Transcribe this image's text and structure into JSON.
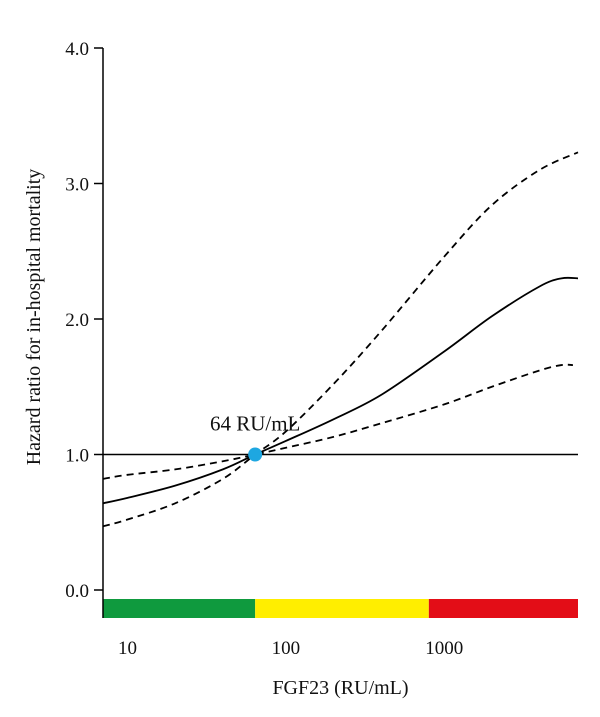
{
  "chart_data": {
    "type": "line",
    "xlabel": "FGF23 (RU/mL)",
    "ylabel": "Hazard ratio for in-hospital mortality",
    "x_scale": "log",
    "xlim": [
      7,
      7000
    ],
    "ylim": [
      0.0,
      4.0
    ],
    "x_ticks": [
      10,
      100,
      1000
    ],
    "x_tick_labels": [
      "10",
      "100",
      "1000"
    ],
    "y_ticks": [
      0.0,
      1.0,
      2.0,
      3.0,
      4.0
    ],
    "y_tick_labels": [
      "0.0",
      "1.0",
      "2.0",
      "3.0",
      "4.0"
    ],
    "grid": false,
    "reference_line": {
      "y": 1.0
    },
    "series": [
      {
        "style": "solid",
        "color": "#000000",
        "x": [
          7,
          10,
          20,
          40,
          64,
          100,
          200,
          400,
          1000,
          2000,
          4000,
          5500,
          7000
        ],
        "y": [
          0.64,
          0.68,
          0.77,
          0.89,
          1.0,
          1.1,
          1.26,
          1.44,
          1.76,
          2.02,
          2.24,
          2.3,
          2.3
        ]
      },
      {
        "style": "dashed",
        "color": "#000000",
        "x": [
          7,
          10,
          20,
          40,
          64,
          100,
          200,
          400,
          1000,
          2000,
          4000,
          7000
        ],
        "y": [
          0.47,
          0.52,
          0.64,
          0.82,
          1.0,
          1.17,
          1.52,
          1.91,
          2.46,
          2.84,
          3.1,
          3.23
        ]
      },
      {
        "style": "dashed",
        "color": "#000000",
        "x": [
          7,
          10,
          20,
          40,
          64,
          100,
          200,
          400,
          1000,
          2000,
          4000,
          5500,
          6500
        ],
        "y": [
          0.82,
          0.85,
          0.89,
          0.95,
          1.0,
          1.05,
          1.13,
          1.23,
          1.37,
          1.5,
          1.62,
          1.66,
          1.66
        ]
      }
    ],
    "highlight_point": {
      "x": 64,
      "y": 1.0,
      "label": "64 RU/mL",
      "color": "#1ea7e1"
    },
    "color_bands": [
      {
        "from": 7,
        "to": 64,
        "color": "#0f9a3e"
      },
      {
        "from": 64,
        "to": 800,
        "color": "#ffee00"
      },
      {
        "from": 800,
        "to": 7000,
        "color": "#e30d17"
      }
    ]
  }
}
